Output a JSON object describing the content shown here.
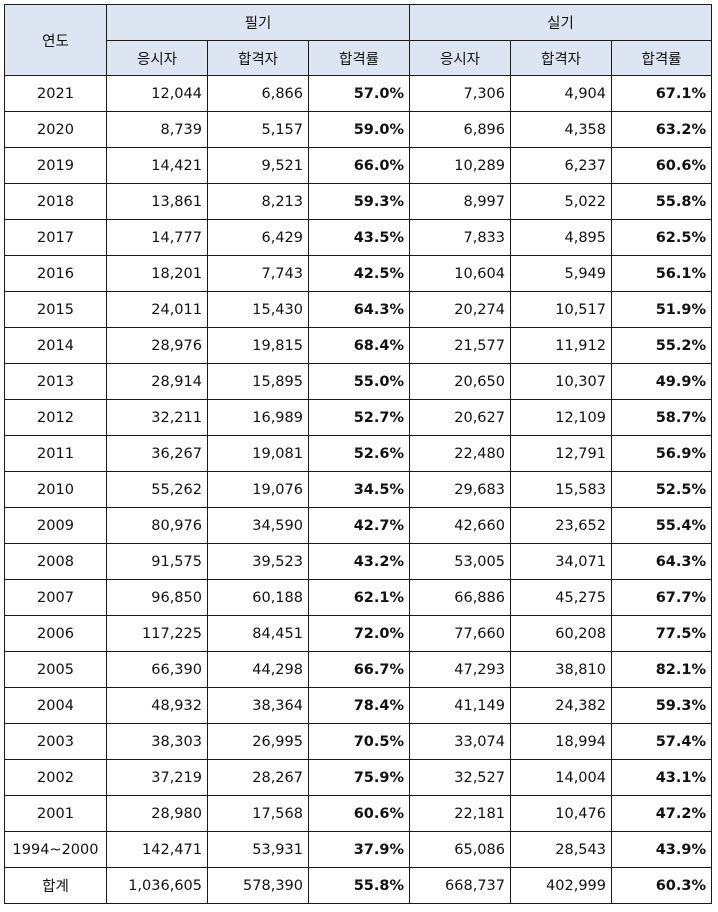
{
  "headers": {
    "year": "연도",
    "written": "필기",
    "practical": "실기",
    "applicants": "응시자",
    "passers": "합격자",
    "pass_rate": "합격률"
  },
  "rows": [
    {
      "year": "2021",
      "w_app": "12,044",
      "w_pass": "6,866",
      "w_rate": "57.0%",
      "p_app": "7,306",
      "p_pass": "4,904",
      "p_rate": "67.1%"
    },
    {
      "year": "2020",
      "w_app": "8,739",
      "w_pass": "5,157",
      "w_rate": "59.0%",
      "p_app": "6,896",
      "p_pass": "4,358",
      "p_rate": "63.2%"
    },
    {
      "year": "2019",
      "w_app": "14,421",
      "w_pass": "9,521",
      "w_rate": "66.0%",
      "p_app": "10,289",
      "p_pass": "6,237",
      "p_rate": "60.6%"
    },
    {
      "year": "2018",
      "w_app": "13,861",
      "w_pass": "8,213",
      "w_rate": "59.3%",
      "p_app": "8,997",
      "p_pass": "5,022",
      "p_rate": "55.8%"
    },
    {
      "year": "2017",
      "w_app": "14,777",
      "w_pass": "6,429",
      "w_rate": "43.5%",
      "p_app": "7,833",
      "p_pass": "4,895",
      "p_rate": "62.5%"
    },
    {
      "year": "2016",
      "w_app": "18,201",
      "w_pass": "7,743",
      "w_rate": "42.5%",
      "p_app": "10,604",
      "p_pass": "5,949",
      "p_rate": "56.1%"
    },
    {
      "year": "2015",
      "w_app": "24,011",
      "w_pass": "15,430",
      "w_rate": "64.3%",
      "p_app": "20,274",
      "p_pass": "10,517",
      "p_rate": "51.9%"
    },
    {
      "year": "2014",
      "w_app": "28,976",
      "w_pass": "19,815",
      "w_rate": "68.4%",
      "p_app": "21,577",
      "p_pass": "11,912",
      "p_rate": "55.2%"
    },
    {
      "year": "2013",
      "w_app": "28,914",
      "w_pass": "15,895",
      "w_rate": "55.0%",
      "p_app": "20,650",
      "p_pass": "10,307",
      "p_rate": "49.9%"
    },
    {
      "year": "2012",
      "w_app": "32,211",
      "w_pass": "16,989",
      "w_rate": "52.7%",
      "p_app": "20,627",
      "p_pass": "12,109",
      "p_rate": "58.7%"
    },
    {
      "year": "2011",
      "w_app": "36,267",
      "w_pass": "19,081",
      "w_rate": "52.6%",
      "p_app": "22,480",
      "p_pass": "12,791",
      "p_rate": "56.9%"
    },
    {
      "year": "2010",
      "w_app": "55,262",
      "w_pass": "19,076",
      "w_rate": "34.5%",
      "p_app": "29,683",
      "p_pass": "15,583",
      "p_rate": "52.5%"
    },
    {
      "year": "2009",
      "w_app": "80,976",
      "w_pass": "34,590",
      "w_rate": "42.7%",
      "p_app": "42,660",
      "p_pass": "23,652",
      "p_rate": "55.4%"
    },
    {
      "year": "2008",
      "w_app": "91,575",
      "w_pass": "39,523",
      "w_rate": "43.2%",
      "p_app": "53,005",
      "p_pass": "34,071",
      "p_rate": "64.3%"
    },
    {
      "year": "2007",
      "w_app": "96,850",
      "w_pass": "60,188",
      "w_rate": "62.1%",
      "p_app": "66,886",
      "p_pass": "45,275",
      "p_rate": "67.7%"
    },
    {
      "year": "2006",
      "w_app": "117,225",
      "w_pass": "84,451",
      "w_rate": "72.0%",
      "p_app": "77,660",
      "p_pass": "60,208",
      "p_rate": "77.5%"
    },
    {
      "year": "2005",
      "w_app": "66,390",
      "w_pass": "44,298",
      "w_rate": "66.7%",
      "p_app": "47,293",
      "p_pass": "38,810",
      "p_rate": "82.1%"
    },
    {
      "year": "2004",
      "w_app": "48,932",
      "w_pass": "38,364",
      "w_rate": "78.4%",
      "p_app": "41,149",
      "p_pass": "24,382",
      "p_rate": "59.3%"
    },
    {
      "year": "2003",
      "w_app": "38,303",
      "w_pass": "26,995",
      "w_rate": "70.5%",
      "p_app": "33,074",
      "p_pass": "18,994",
      "p_rate": "57.4%"
    },
    {
      "year": "2002",
      "w_app": "37,219",
      "w_pass": "28,267",
      "w_rate": "75.9%",
      "p_app": "32,527",
      "p_pass": "14,004",
      "p_rate": "43.1%"
    },
    {
      "year": "2001",
      "w_app": "28,980",
      "w_pass": "17,568",
      "w_rate": "60.6%",
      "p_app": "22,181",
      "p_pass": "10,476",
      "p_rate": "47.2%"
    },
    {
      "year": "1994~2000",
      "w_app": "142,471",
      "w_pass": "53,931",
      "w_rate": "37.9%",
      "p_app": "65,086",
      "p_pass": "28,543",
      "p_rate": "43.9%"
    },
    {
      "year": "합계",
      "w_app": "1,036,605",
      "w_pass": "578,390",
      "w_rate": "55.8%",
      "p_app": "668,737",
      "p_pass": "402,999",
      "p_rate": "60.3%"
    }
  ]
}
